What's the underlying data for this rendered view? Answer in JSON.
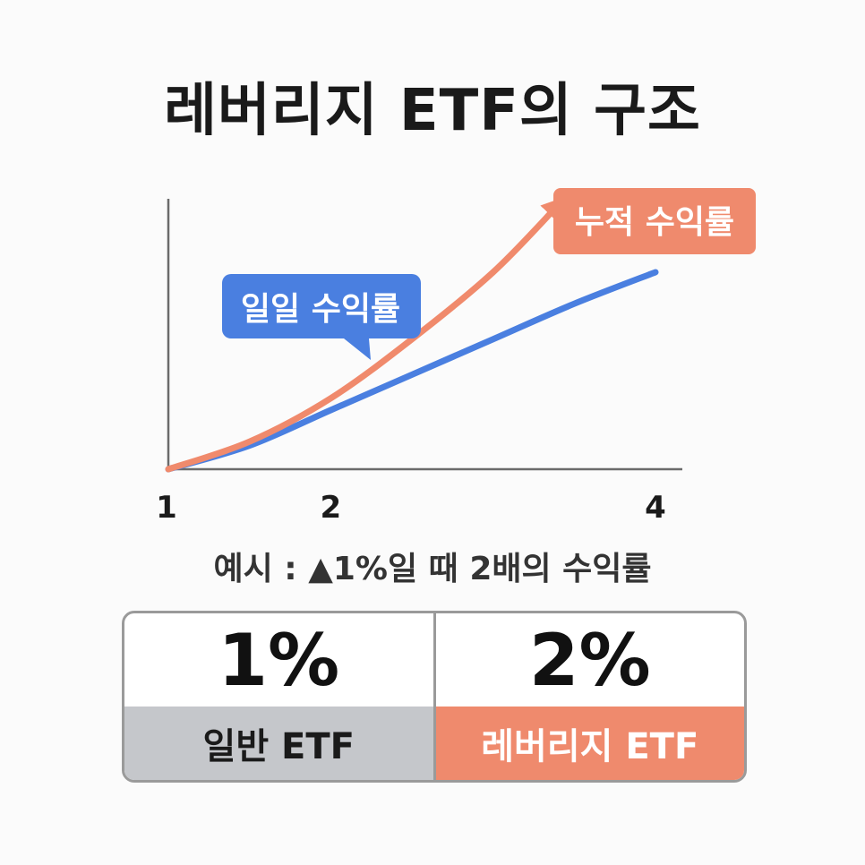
{
  "title": "레버리지 ETF의 구조",
  "caption": "예시 : ▲1%일 때 2배의 수익률",
  "chart_data": {
    "type": "line",
    "title": "레버리지 ETF의 구조",
    "x_ticks": [
      "1",
      "2",
      "4"
    ],
    "xlim": [
      1,
      4
    ],
    "grid": false,
    "series": [
      {
        "name": "일일 수익률",
        "color": "#4a7fe0",
        "x": [
          1,
          1.5,
          2,
          2.5,
          3,
          3.5,
          4
        ],
        "y": [
          0,
          0.12,
          0.3,
          0.48,
          0.66,
          0.84,
          1.0
        ]
      },
      {
        "name": "누적 수익률",
        "color": "#f08a6c",
        "x": [
          1,
          1.5,
          2,
          2.5,
          3,
          3.4
        ],
        "y": [
          0,
          0.14,
          0.36,
          0.66,
          1.0,
          1.34
        ]
      }
    ]
  },
  "annotations": {
    "daily_label": "일일 수익률",
    "cumulative_label": "누적 수익률",
    "daily_color": "#4a7fe0",
    "cumulative_color": "#ef8a6d"
  },
  "comparison": [
    {
      "value": "1%",
      "label": "일반 ETF"
    },
    {
      "value": "2%",
      "label": "레버리지 ETF"
    }
  ]
}
